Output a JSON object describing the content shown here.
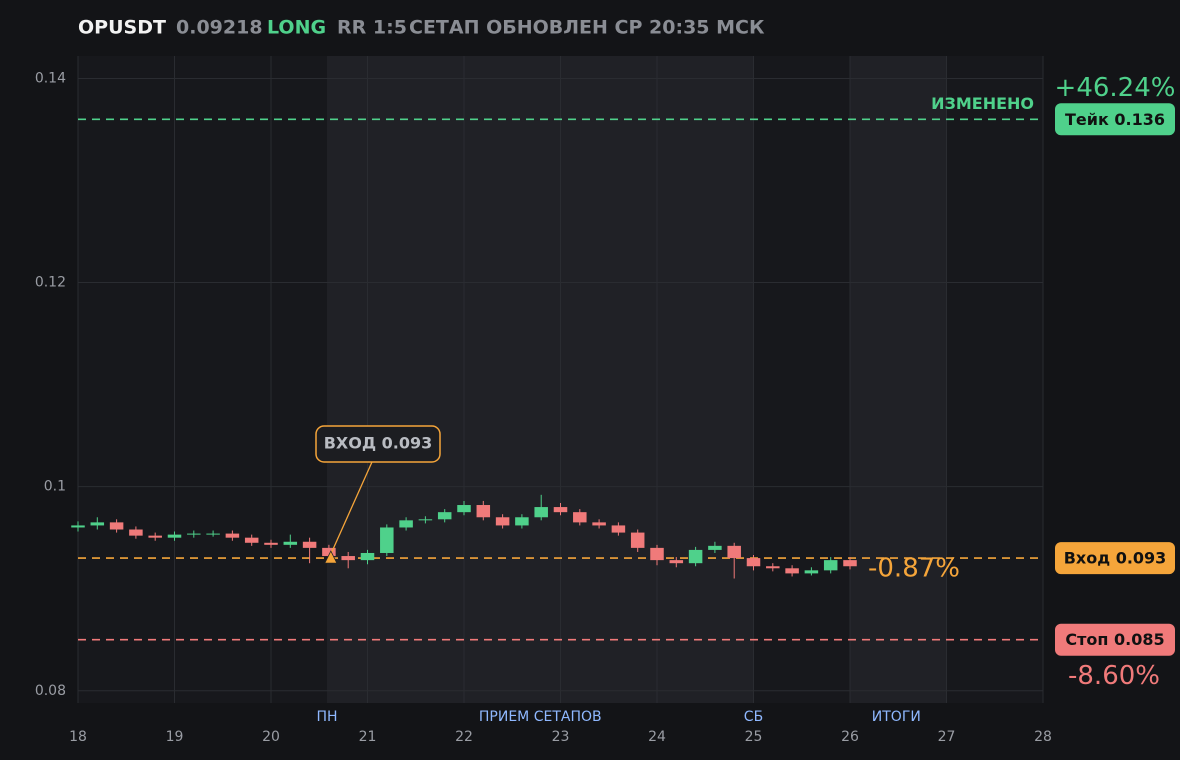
{
  "header": {
    "symbol": "OPUSDT",
    "price": "0.09218",
    "side": "LONG",
    "rr": "RR 1:5",
    "status": "СЕТАП ОБНОВЛЕН СР 20:35 МСК"
  },
  "chart_data": {
    "type": "candlestick",
    "x": [
      18.0,
      18.2,
      18.4,
      18.6,
      18.8,
      19.0,
      19.2,
      19.4,
      19.6,
      19.8,
      20.0,
      20.2,
      20.4,
      20.6,
      20.8,
      21.0,
      21.2,
      21.4,
      21.6,
      21.8,
      22.0,
      22.2,
      22.4,
      22.6,
      22.8,
      23.0,
      23.2,
      23.4,
      23.6,
      23.8,
      24.0,
      24.2,
      24.4,
      24.6,
      24.8,
      25.0,
      25.2,
      25.4,
      25.6,
      25.8,
      26.0
    ],
    "open": [
      0.096,
      0.0962,
      0.0965,
      0.0958,
      0.0952,
      0.095,
      0.0953,
      0.0954,
      0.0954,
      0.095,
      0.0945,
      0.0943,
      0.0946,
      0.094,
      0.0932,
      0.0928,
      0.0935,
      0.096,
      0.0967,
      0.0968,
      0.0975,
      0.0982,
      0.097,
      0.0962,
      0.097,
      0.098,
      0.0975,
      0.0965,
      0.0962,
      0.0955,
      0.094,
      0.0928,
      0.0925,
      0.0938,
      0.0942,
      0.093,
      0.0922,
      0.092,
      0.0915,
      0.0918,
      0.0928
    ],
    "high": [
      0.0966,
      0.097,
      0.0968,
      0.0961,
      0.0955,
      0.0956,
      0.0957,
      0.0957,
      0.0957,
      0.0953,
      0.0948,
      0.0953,
      0.095,
      0.0943,
      0.0936,
      0.0938,
      0.0963,
      0.097,
      0.0971,
      0.0978,
      0.0986,
      0.0986,
      0.0973,
      0.0973,
      0.0992,
      0.0984,
      0.0978,
      0.0968,
      0.0965,
      0.0958,
      0.0943,
      0.0931,
      0.0941,
      0.0946,
      0.0945,
      0.0933,
      0.0925,
      0.0923,
      0.0921,
      0.0931,
      0.0931
    ],
    "low": [
      0.0956,
      0.0958,
      0.0955,
      0.0949,
      0.0947,
      0.0947,
      0.095,
      0.0951,
      0.0947,
      0.0942,
      0.094,
      0.094,
      0.0925,
      0.0928,
      0.092,
      0.0924,
      0.0932,
      0.0957,
      0.0964,
      0.0965,
      0.0972,
      0.0967,
      0.0959,
      0.0959,
      0.0967,
      0.0972,
      0.0962,
      0.0959,
      0.0952,
      0.0936,
      0.0923,
      0.0921,
      0.0922,
      0.0935,
      0.091,
      0.0918,
      0.0917,
      0.0912,
      0.0913,
      0.0915,
      0.0919
    ],
    "close": [
      0.0962,
      0.0965,
      0.0958,
      0.0952,
      0.095,
      0.0953,
      0.0954,
      0.0954,
      0.095,
      0.0945,
      0.0943,
      0.0946,
      0.094,
      0.0932,
      0.0928,
      0.0935,
      0.096,
      0.0967,
      0.0968,
      0.0975,
      0.0982,
      0.097,
      0.0962,
      0.097,
      0.098,
      0.0975,
      0.0965,
      0.0962,
      0.0955,
      0.094,
      0.0928,
      0.0925,
      0.0938,
      0.0942,
      0.093,
      0.0922,
      0.092,
      0.0915,
      0.0918,
      0.0928,
      0.0922
    ],
    "up_color": "#4fd18b",
    "down_color": "#f07a7a",
    "xlim": [
      18,
      28
    ],
    "xticks": [
      18,
      19,
      20,
      21,
      22,
      23,
      24,
      25,
      26,
      27,
      28
    ],
    "ylim": [
      0.0788,
      0.1422
    ],
    "yticks": [
      0.08,
      0.1,
      0.12,
      0.14
    ],
    "grid": true,
    "shaded": [
      [
        20.58,
        25
      ],
      [
        26,
        27
      ]
    ],
    "sessions": [
      {
        "label": "ПН",
        "x": 20.58
      },
      {
        "label": "ПРИЕМ СЕТАПОВ",
        "x": 22.79
      },
      {
        "label": "СБ",
        "x": 25
      },
      {
        "label": "ИТОГИ",
        "x": 26.48
      }
    ],
    "levels": [
      {
        "value": 0.136,
        "label": "Тейк 0.136",
        "color": "#4fd18b",
        "change": "+46.24%",
        "note": "ИЗМЕНЕНО"
      },
      {
        "value": 0.093,
        "label": "Вход 0.093",
        "color": "#f5a53a",
        "change": "-0.87%"
      },
      {
        "value": 0.085,
        "label": "Стоп 0.085",
        "color": "#f07a7a",
        "change": "-8.60%"
      }
    ],
    "entry": {
      "label": "ВХОД 0.093",
      "x": 20.62,
      "value": 0.093,
      "color": "#f5a53a"
    }
  }
}
